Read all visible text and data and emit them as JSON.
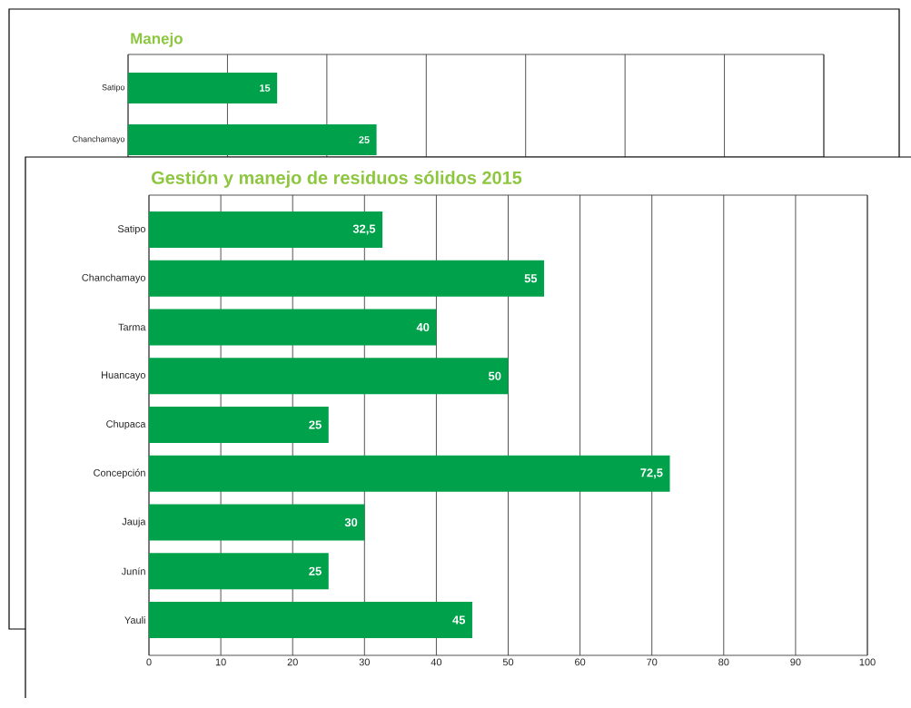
{
  "chart_data": [
    {
      "type": "bar",
      "orientation": "horizontal",
      "title": "Manejo",
      "categories": [
        "Satipo",
        "Chanchamayo"
      ],
      "values": [
        15,
        25
      ],
      "color": "#00a14b",
      "data_labels": true,
      "xlim": [
        0,
        70
      ],
      "xticks": [
        {
          "value": 0,
          "label": null
        },
        {
          "value": 10,
          "label": null
        },
        {
          "value": 20,
          "label": null
        },
        {
          "value": 30,
          "label": null
        },
        {
          "value": 40,
          "label": null
        },
        {
          "value": 50,
          "label": null
        },
        {
          "value": 60,
          "label": null
        },
        {
          "value": 70,
          "label": null
        }
      ],
      "grid": "x",
      "tick_labels": "y"
    },
    {
      "type": "bar",
      "orientation": "horizontal",
      "title": "Gestión y manejo de residuos sólidos 2015",
      "categories": [
        "Satipo",
        "Chanchamayo",
        "Tarma",
        "Huancayo",
        "Chupaca",
        "Concepción",
        "Jauja",
        "Junín",
        "Yauli"
      ],
      "values": [
        32.5,
        55,
        40,
        50,
        25,
        72.5,
        30,
        25,
        45
      ],
      "value_labels": [
        "32,5",
        "55",
        "40",
        "50",
        "25",
        "72,5",
        "30",
        "25",
        "45"
      ],
      "color": "#00a14b",
      "xlim": [
        0,
        100
      ],
      "xticks": [
        0,
        10,
        20,
        30,
        40,
        50,
        60,
        70,
        80,
        90,
        100
      ],
      "grid": "x"
    }
  ]
}
